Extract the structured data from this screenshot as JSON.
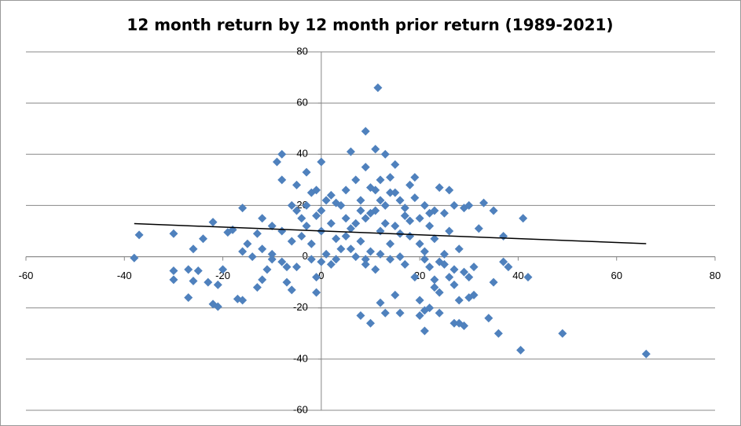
{
  "chart_data": {
    "type": "scatter",
    "title": "12 month return by 12 month prior return (1989-2021)",
    "color": "#4f81bd",
    "x": [
      11.5,
      9,
      66,
      49,
      40.5,
      -38,
      -37,
      -30,
      -30,
      -30,
      -27,
      -27,
      -26,
      -26,
      -25,
      -24,
      -23,
      -22,
      -22,
      -21,
      -21,
      -20,
      -19,
      -18,
      -17,
      -16,
      -16,
      -16,
      -15,
      -14,
      -13,
      -13,
      -12,
      -12,
      -11,
      -10,
      -10,
      -9,
      -8,
      -8,
      -8,
      -8,
      -7,
      -7,
      -6,
      -6,
      -5,
      -5,
      -4,
      -4,
      -3,
      -3,
      -3,
      -2,
      -2,
      -2,
      -1,
      -1,
      -1,
      0,
      0,
      -1,
      0,
      1,
      1,
      2,
      2,
      3,
      3,
      4,
      4,
      5,
      5,
      6,
      6,
      7,
      7,
      8,
      8,
      8,
      9,
      9,
      9,
      10,
      10,
      10,
      11,
      11,
      11,
      12,
      12,
      12,
      13,
      13,
      13,
      14,
      14,
      14,
      15,
      15,
      15,
      16,
      16,
      16,
      17,
      17,
      18,
      18,
      19,
      19,
      20,
      20,
      20,
      21,
      21,
      21,
      21,
      22,
      22,
      23,
      23,
      23,
      24,
      24,
      24,
      25,
      25,
      26,
      26,
      27,
      27,
      27,
      28,
      28,
      28,
      29,
      29,
      29,
      30,
      30,
      31,
      31,
      32,
      33,
      34,
      35,
      35,
      36,
      37,
      37,
      41,
      42,
      38,
      26,
      -5,
      3,
      12,
      17,
      19,
      15,
      10,
      7,
      5,
      18,
      22,
      13,
      16,
      8,
      21,
      24,
      11,
      14,
      6,
      -6,
      -10,
      -12,
      0,
      2,
      27,
      30,
      22,
      20,
      23,
      25,
      12,
      9
    ],
    "values": [
      66,
      49,
      -38,
      -30,
      -36.5,
      -0.5,
      8.5,
      9,
      -5.5,
      -9,
      -16,
      -5,
      -9.5,
      3,
      -5.5,
      7,
      -10,
      13.5,
      -18.5,
      -19.5,
      -11,
      -5,
      9.5,
      10.5,
      -16.5,
      -17,
      19,
      2,
      5,
      0,
      9,
      -12,
      3,
      -9,
      -5,
      1,
      -1,
      37,
      40,
      30,
      10,
      -2,
      -4,
      -10,
      -13,
      20,
      28,
      18,
      15,
      8,
      33,
      20,
      12,
      25,
      5,
      -1,
      26,
      16,
      -8,
      37,
      10,
      -14,
      18,
      22,
      1,
      24,
      13,
      7,
      -1,
      20,
      3,
      26,
      15,
      41,
      11,
      0,
      30,
      -23,
      22,
      6,
      35,
      -3,
      15,
      -26,
      27,
      2,
      18,
      42,
      -5,
      -18,
      10,
      30,
      -22,
      40,
      20,
      5,
      -1,
      25,
      -15,
      12,
      36,
      -22,
      22,
      0,
      16,
      -3,
      28,
      8,
      -8,
      31,
      -17,
      15,
      -23,
      -29,
      -21,
      20,
      2,
      12,
      -4,
      -9,
      -12,
      7,
      27,
      -14,
      -22,
      17,
      -3,
      -8,
      10,
      -26,
      20,
      -11,
      -26,
      3,
      -17,
      -27,
      -6,
      19,
      -16,
      20,
      -15,
      -4,
      11,
      21,
      -24,
      -10,
      18,
      -30,
      -2,
      8,
      15,
      -8,
      -4,
      26,
      -4,
      21,
      22,
      19,
      23,
      25,
      17,
      13,
      8,
      14,
      17,
      13,
      9,
      18,
      -1,
      -2,
      26,
      31,
      3,
      6,
      12,
      15,
      -2,
      -3,
      -5,
      -8,
      -20,
      5,
      18,
      1,
      1,
      -1
    ],
    "trendline": {
      "x": [
        -38,
        66
      ],
      "values": [
        12.9,
        5.1
      ],
      "color": "#000000"
    },
    "xlim": [
      -60,
      80
    ],
    "ylim": [
      -60,
      80
    ],
    "xticks": [
      -60,
      -40,
      -20,
      0,
      20,
      40,
      60,
      80
    ],
    "yticks": [
      -60,
      -40,
      -20,
      0,
      20,
      40,
      60,
      80
    ],
    "grid": true
  }
}
